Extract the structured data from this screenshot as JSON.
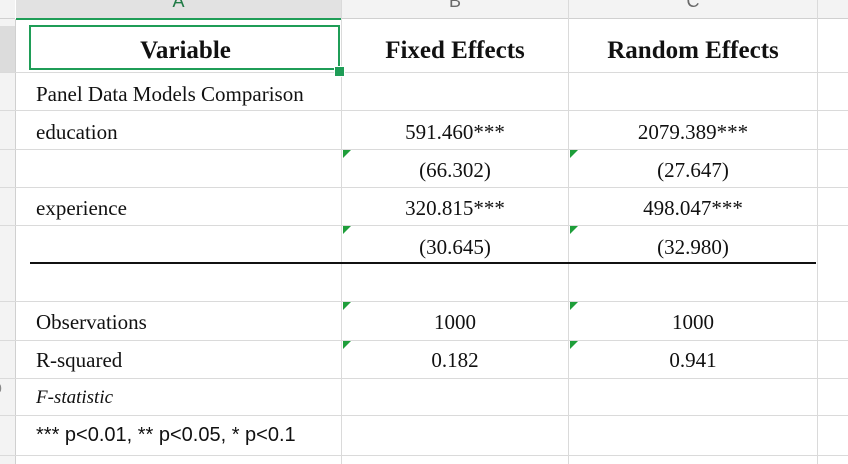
{
  "columns": [
    "A",
    "B",
    "C"
  ],
  "table": {
    "header": {
      "variable": "Variable",
      "fixed": "Fixed Effects",
      "random": "Random Effects"
    },
    "title": "Panel Data Models Comparison",
    "rows": [
      {
        "label": "education",
        "fixed": "591.460***",
        "random": "2079.389***"
      },
      {
        "label": "",
        "fixed": "(66.302)",
        "random": "(27.647)"
      },
      {
        "label": "experience",
        "fixed": "320.815***",
        "random": "498.047***"
      },
      {
        "label": "",
        "fixed": "(30.645)",
        "random": "(32.980)"
      }
    ],
    "stats": [
      {
        "label": "Observations",
        "fixed": "1000",
        "random": "1000"
      },
      {
        "label": "R-squared",
        "fixed": "0.182",
        "random": "0.941"
      }
    ],
    "fstat_label": "F-statistic",
    "note": "*** p<0.01, ** p<0.05, * p<0.1"
  },
  "row_number_partial": "0",
  "colors": {
    "selection": "#1f9d57",
    "error_triangle": "#1e9e3a",
    "grid": "#dadada"
  }
}
